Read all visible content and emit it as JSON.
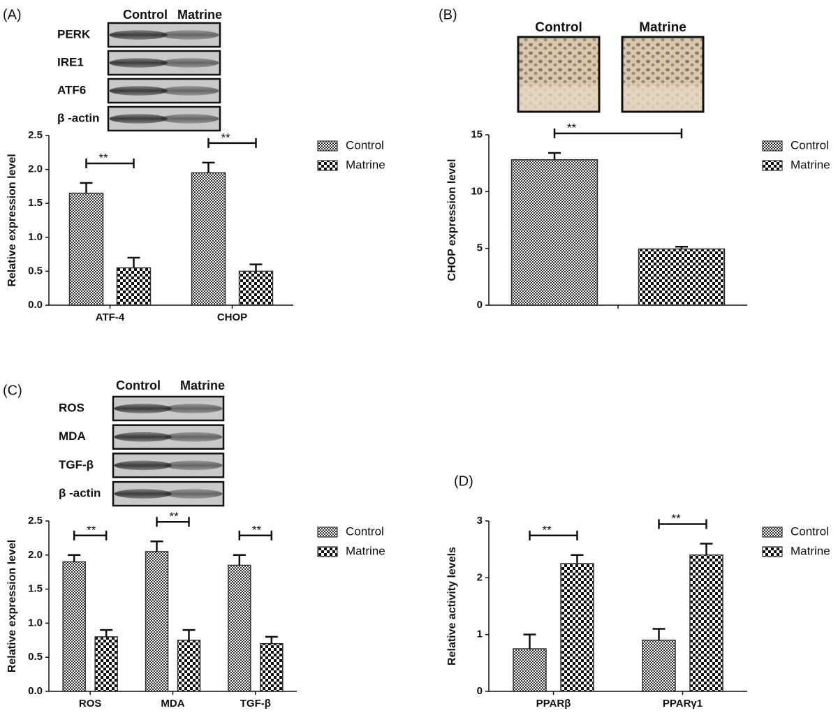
{
  "chart_data": [
    {
      "type": "bar",
      "panel": "(A)",
      "ylabel": "Relative expression level",
      "blot": {
        "lanes": [
          "Control",
          "Matrine"
        ],
        "rows": [
          "PERK",
          "IRE1",
          "ATF6",
          "β -actin"
        ]
      },
      "categories": [
        "ATF-4",
        "CHOP"
      ],
      "series": [
        {
          "name": "Control",
          "color": "#333333",
          "pattern": "fine",
          "values": [
            1.65,
            1.95
          ],
          "errors": [
            0.15,
            0.15
          ]
        },
        {
          "name": "Matrine",
          "color": "#333333",
          "pattern": "coarse",
          "values": [
            0.55,
            0.5
          ],
          "errors": [
            0.15,
            0.1
          ]
        }
      ],
      "significance": [
        "**",
        "**"
      ],
      "ylim": [
        0,
        2.5
      ],
      "yticks": [
        {
          "value": 0,
          "label": "0.0"
        },
        0.5,
        {
          "value": 1,
          "label": "1.0"
        },
        1.5,
        {
          "value": 2,
          "label": "2.0"
        },
        2.5
      ],
      "legend": "right"
    },
    {
      "type": "bar",
      "panel": "(B)",
      "ylabel": "CHOP expression level",
      "images": {
        "labels": [
          "Control",
          "Matrine"
        ]
      },
      "categories": [
        null
      ],
      "series": [
        {
          "name": "Control",
          "color": "#333333",
          "pattern": "fine",
          "values": [
            12.8
          ],
          "errors": [
            0.6
          ]
        },
        {
          "name": "Matrine",
          "color": "#333333",
          "pattern": "coarse",
          "values": [
            4.95
          ],
          "errors": [
            0.2
          ]
        }
      ],
      "significance": [
        "**"
      ],
      "ylim": [
        0,
        15
      ],
      "yticks": [
        0,
        5,
        10,
        15
      ],
      "legend": "right"
    },
    {
      "type": "bar",
      "panel": "(C)",
      "ylabel": "Relative expression level",
      "blot": {
        "lanes": [
          "Control",
          "Matrine"
        ],
        "rows": [
          "ROS",
          "MDA",
          "TGF-β",
          "β -actin"
        ]
      },
      "categories": [
        "ROS",
        "MDA",
        "TGF-β"
      ],
      "series": [
        {
          "name": "Control",
          "color": "#333333",
          "pattern": "fine",
          "values": [
            1.9,
            2.05,
            1.85
          ],
          "errors": [
            0.1,
            0.15,
            0.15
          ]
        },
        {
          "name": "Matrine",
          "color": "#333333",
          "pattern": "coarse",
          "values": [
            0.8,
            0.75,
            0.7
          ],
          "errors": [
            0.1,
            0.15,
            0.1
          ]
        }
      ],
      "significance": [
        "**",
        "**",
        "**"
      ],
      "ylim": [
        0,
        2.5
      ],
      "yticks": [
        {
          "value": 0,
          "label": "0.0"
        },
        0.5,
        {
          "value": 1,
          "label": "1.0"
        },
        1.5,
        {
          "value": 2,
          "label": "2.0"
        },
        2.5
      ],
      "legend": "right"
    },
    {
      "type": "bar",
      "panel": "(D)",
      "ylabel": "Relative activity levels",
      "categories": [
        "PPARβ",
        "PPARγ1"
      ],
      "series": [
        {
          "name": "Control",
          "color": "#333333",
          "pattern": "fine",
          "values": [
            0.75,
            0.9
          ],
          "errors": [
            0.25,
            0.2
          ]
        },
        {
          "name": "Matrine",
          "color": "#333333",
          "pattern": "coarse",
          "values": [
            2.25,
            2.4
          ],
          "errors": [
            0.15,
            0.2
          ]
        }
      ],
      "significance": [
        "**",
        "**"
      ],
      "ylim": [
        0,
        3
      ],
      "yticks": [
        0,
        1,
        2,
        3
      ],
      "legend": "right"
    }
  ]
}
